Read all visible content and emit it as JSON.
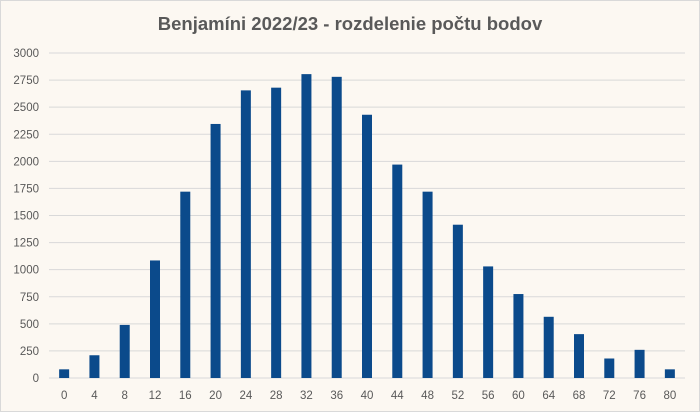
{
  "chart_data": {
    "type": "bar",
    "title": "Benjamíni 2022/23 - rozdelenie počtu bodov",
    "xlabel": "",
    "ylabel": "",
    "categories": [
      "0",
      "4",
      "8",
      "12",
      "16",
      "20",
      "24",
      "28",
      "32",
      "36",
      "40",
      "44",
      "48",
      "52",
      "56",
      "60",
      "64",
      "68",
      "72",
      "76",
      "80"
    ],
    "values": [
      80,
      210,
      490,
      1085,
      1720,
      2345,
      2655,
      2680,
      2805,
      2780,
      2430,
      1970,
      1720,
      1415,
      1030,
      775,
      565,
      405,
      180,
      260,
      80
    ],
    "ylim": [
      0,
      3000
    ],
    "yticks": [
      "0",
      "250",
      "500",
      "750",
      "1000",
      "1250",
      "1500",
      "1750",
      "2000",
      "2250",
      "2500",
      "2750",
      "3000"
    ],
    "grid": true,
    "legend": "none",
    "colors": {
      "bar": "#0b4a8b",
      "grid": "#d9d9d9",
      "background": "#fcf8f2",
      "text": "#595959"
    }
  }
}
